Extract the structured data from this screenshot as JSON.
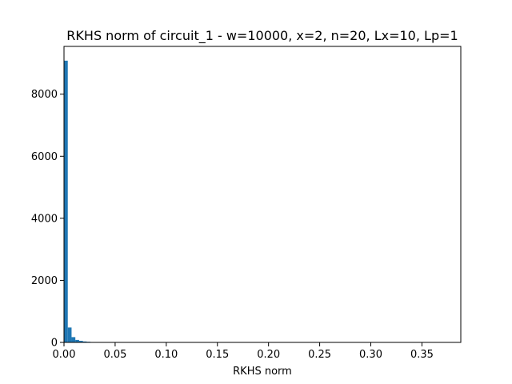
{
  "chart_data": {
    "type": "bar",
    "title": "RKHS norm of circuit_1 - w=10000, x=2, n=20, Lx=10, Lp=1",
    "xlabel": "RKHS norm",
    "ylabel": "",
    "xlim": [
      0.0,
      0.388
    ],
    "ylim": [
      0,
      9540
    ],
    "x_ticks": [
      0.0,
      0.05,
      0.1,
      0.15,
      0.2,
      0.25,
      0.3,
      0.35
    ],
    "x_tick_labels": [
      "0.00",
      "0.05",
      "0.10",
      "0.15",
      "0.20",
      "0.25",
      "0.30",
      "0.35"
    ],
    "y_ticks": [
      0,
      2000,
      4000,
      6000,
      8000
    ],
    "y_tick_labels": [
      "0",
      "2000",
      "4000",
      "6000",
      "8000"
    ],
    "bin_width": 0.0037,
    "bin_starts": [
      0.0,
      0.0037,
      0.0074,
      0.0111,
      0.0148,
      0.0185,
      0.0222,
      0.0259,
      0.0296,
      0.0333
    ],
    "counts": [
      9080,
      480,
      170,
      80,
      50,
      30,
      20,
      10,
      8,
      5
    ],
    "bar_color": "#1f77b4",
    "grid": false,
    "legend": "none"
  }
}
